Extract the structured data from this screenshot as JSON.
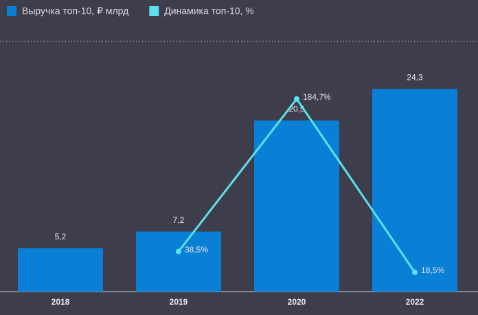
{
  "chart_data": {
    "type": "bar",
    "categories": [
      "2018",
      "2019",
      "2020",
      "2022"
    ],
    "series": [
      {
        "name": "Выручка топ-10, ₽ млрд",
        "type": "bar",
        "color": "#0a7fd6",
        "values": [
          5.2,
          7.2,
          20.5,
          24.3
        ],
        "value_labels": [
          "5,2",
          "7,2",
          "20,5",
          "24,3"
        ]
      },
      {
        "name": "Динамика топ-10, %",
        "type": "line",
        "axis": "y2",
        "color": "#5ce1ef",
        "values": [
          null,
          38.5,
          184.7,
          18.5
        ],
        "value_labels": [
          null,
          "38,5%",
          "184,7%",
          "18,5%"
        ]
      }
    ],
    "ylim": [
      0,
      30
    ],
    "y2lim": [
      0,
      240
    ]
  }
}
